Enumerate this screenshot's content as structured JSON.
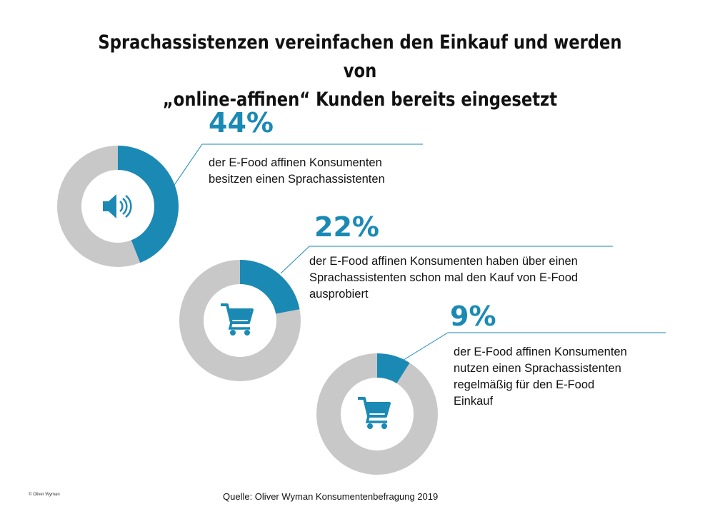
{
  "title": {
    "line1": "Sprachassistenzen vereinfachen den Einkauf und werden von",
    "line2": "„online-affinen“ Kunden bereits eingesetzt"
  },
  "chart_data": {
    "type": "pie",
    "title": "Sprachassistenzen vereinfachen den Einkauf und werden von „online-affinen“ Kunden bereits eingesetzt",
    "colors": {
      "value": "#1a8ab5",
      "rest": "#c8c8c8"
    },
    "stats": [
      {
        "label": "44%",
        "value": 44,
        "icon": "speaker-icon",
        "description": [
          "der E-Food affinen Konsumenten",
          "besitzen einen Sprachassistenten"
        ]
      },
      {
        "label": "22%",
        "value": 22,
        "icon": "shopping-cart-icon",
        "description": [
          "der E-Food affinen Konsumenten haben über einen",
          "Sprachassistenten schon mal den Kauf von E-Food",
          "ausprobiert"
        ]
      },
      {
        "label": "9%",
        "value": 9,
        "icon": "shopping-cart-icon",
        "description": [
          "der E-Food affinen Konsumenten",
          "nutzen einen Sprachassistenten",
          "regelmäßig für den E-Food",
          "Einkauf"
        ]
      }
    ]
  },
  "footer": {
    "source": "Quelle: Oliver Wyman Konsumentenbefragung 2019",
    "copyright": "© Oliver Wyman"
  }
}
